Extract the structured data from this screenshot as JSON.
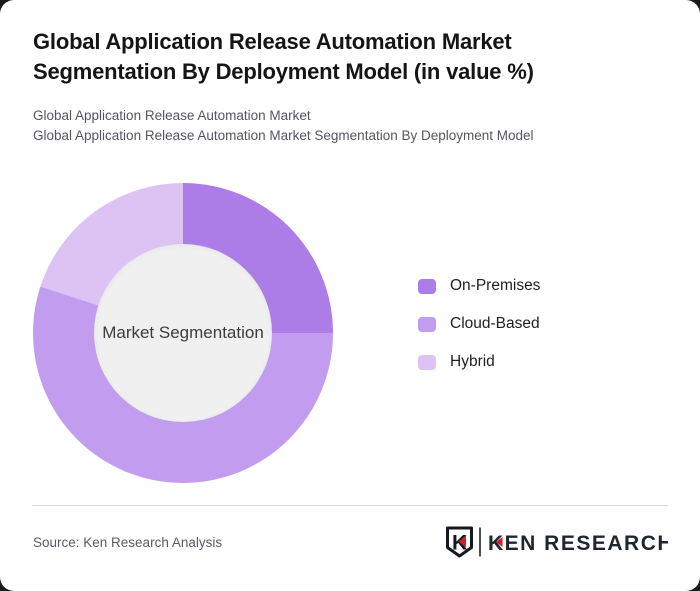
{
  "page": {
    "background_color": "#1a1a1c",
    "card_color": "#ffffff"
  },
  "header": {
    "title": "Global Application Release Automation Market Segmentation By Deployment Model (in value %)",
    "subtitles": [
      "Global Application Release Automation Market",
      "Global Application Release Automation Market Segmentation By Deployment Model"
    ]
  },
  "chart_data": {
    "type": "pie",
    "variant": "donut",
    "units": "value %",
    "start_angle_deg": 0,
    "direction": "clockwise",
    "center_label": "Market Segmentation",
    "hole_color": "#f0f0f1",
    "legend_position": "right",
    "slices": [
      {
        "label": "On-Premises",
        "value": 25,
        "color": "#ad7de7"
      },
      {
        "label": "Cloud-Based",
        "value": 55,
        "color": "#c19cef"
      },
      {
        "label": "Hybrid",
        "value": 20,
        "color": "#dcc3f4"
      }
    ]
  },
  "footer": {
    "source_text": "Source: Ken Research Analysis",
    "logo_text": "KEN RESEARCH",
    "logo_accent_color": "#cd2027",
    "logo_dark_color": "#20262e"
  }
}
